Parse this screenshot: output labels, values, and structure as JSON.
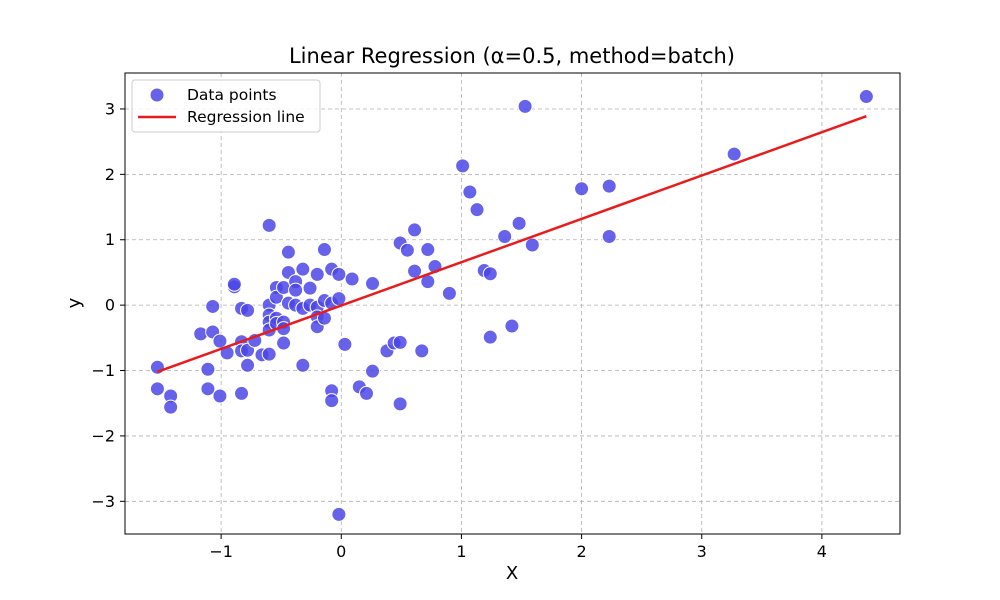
{
  "chart_data": {
    "type": "scatter",
    "title": "Linear Regression (α=0.5, method=batch)",
    "xlabel": "X",
    "ylabel": "y",
    "xlim": [
      -1.8,
      4.65
    ],
    "ylim": [
      -3.5,
      3.55
    ],
    "xticks": [
      {
        "value": -1,
        "label": "−1"
      },
      {
        "value": 0,
        "label": "0"
      },
      {
        "value": 1,
        "label": "1"
      },
      {
        "value": 2,
        "label": "2"
      },
      {
        "value": 3,
        "label": "3"
      },
      {
        "value": 4,
        "label": "4"
      }
    ],
    "yticks": [
      {
        "value": -3,
        "label": "−3"
      },
      {
        "value": -2,
        "label": "−2"
      },
      {
        "value": -1,
        "label": "−1"
      },
      {
        "value": 0,
        "label": "0"
      },
      {
        "value": 1,
        "label": "1"
      },
      {
        "value": 2,
        "label": "2"
      },
      {
        "value": 3,
        "label": "3"
      }
    ],
    "grid": true,
    "legend_position": "top-left",
    "series": [
      {
        "name": "Data points",
        "kind": "scatter",
        "color": "#4b46e6",
        "points": [
          [
            -1.53,
            -0.95
          ],
          [
            -1.53,
            -1.28
          ],
          [
            -1.42,
            -1.39
          ],
          [
            -1.42,
            -1.56
          ],
          [
            -1.17,
            -0.44
          ],
          [
            -1.11,
            -0.98
          ],
          [
            -1.11,
            -1.28
          ],
          [
            -1.07,
            -0.02
          ],
          [
            -1.07,
            -0.41
          ],
          [
            -1.01,
            -0.55
          ],
          [
            -1.01,
            -1.39
          ],
          [
            -0.95,
            -0.73
          ],
          [
            -0.89,
            0.28
          ],
          [
            -0.89,
            0.32
          ],
          [
            -0.83,
            -0.05
          ],
          [
            -0.83,
            -0.56
          ],
          [
            -0.83,
            -0.7
          ],
          [
            -0.83,
            -1.35
          ],
          [
            -0.78,
            -0.08
          ],
          [
            -0.78,
            -0.69
          ],
          [
            -0.78,
            -0.92
          ],
          [
            -0.72,
            -0.54
          ],
          [
            -0.66,
            -0.76
          ],
          [
            -0.6,
            1.22
          ],
          [
            -0.6,
            0.0
          ],
          [
            -0.6,
            -0.15
          ],
          [
            -0.6,
            -0.26
          ],
          [
            -0.6,
            -0.38
          ],
          [
            -0.6,
            -0.75
          ],
          [
            -0.54,
            0.27
          ],
          [
            -0.54,
            0.12
          ],
          [
            -0.54,
            -0.2
          ],
          [
            -0.54,
            -0.28
          ],
          [
            -0.48,
            0.27
          ],
          [
            -0.48,
            -0.26
          ],
          [
            -0.48,
            -0.36
          ],
          [
            -0.48,
            -0.58
          ],
          [
            -0.44,
            0.81
          ],
          [
            -0.44,
            0.5
          ],
          [
            -0.44,
            0.03
          ],
          [
            -0.38,
            0.36
          ],
          [
            -0.38,
            0.23
          ],
          [
            -0.38,
            0.0
          ],
          [
            -0.32,
            0.55
          ],
          [
            -0.32,
            -0.05
          ],
          [
            -0.32,
            -0.92
          ],
          [
            -0.26,
            0.26
          ],
          [
            -0.26,
            0.0
          ],
          [
            -0.2,
            0.47
          ],
          [
            -0.2,
            -0.03
          ],
          [
            -0.2,
            -0.18
          ],
          [
            -0.2,
            -0.33
          ],
          [
            -0.14,
            0.85
          ],
          [
            -0.14,
            0.07
          ],
          [
            -0.14,
            -0.2
          ],
          [
            -0.08,
            0.55
          ],
          [
            -0.08,
            0.03
          ],
          [
            -0.08,
            -1.31
          ],
          [
            -0.08,
            -1.46
          ],
          [
            -0.02,
            0.47
          ],
          [
            -0.02,
            0.1
          ],
          [
            -0.02,
            -3.2
          ],
          [
            0.03,
            -0.6
          ],
          [
            0.09,
            0.4
          ],
          [
            0.15,
            -1.25
          ],
          [
            0.21,
            -1.35
          ],
          [
            0.26,
            0.33
          ],
          [
            0.26,
            -1.01
          ],
          [
            0.38,
            -0.7
          ],
          [
            0.44,
            -0.58
          ],
          [
            0.49,
            0.95
          ],
          [
            0.49,
            -0.57
          ],
          [
            0.49,
            -1.51
          ],
          [
            0.55,
            0.84
          ],
          [
            0.61,
            1.15
          ],
          [
            0.61,
            0.52
          ],
          [
            0.67,
            -0.7
          ],
          [
            0.72,
            0.85
          ],
          [
            0.72,
            0.36
          ],
          [
            0.78,
            0.59
          ],
          [
            0.9,
            0.18
          ],
          [
            1.01,
            2.13
          ],
          [
            1.07,
            1.73
          ],
          [
            1.13,
            1.46
          ],
          [
            1.19,
            0.53
          ],
          [
            1.24,
            0.48
          ],
          [
            1.24,
            -0.49
          ],
          [
            1.36,
            1.05
          ],
          [
            1.42,
            -0.32
          ],
          [
            1.48,
            1.25
          ],
          [
            1.53,
            3.04
          ],
          [
            1.59,
            0.92
          ],
          [
            2.0,
            1.78
          ],
          [
            2.23,
            1.82
          ],
          [
            2.23,
            1.05
          ],
          [
            3.27,
            2.31
          ],
          [
            4.37,
            3.19
          ]
        ]
      },
      {
        "name": "Regression line",
        "kind": "line",
        "color": "#e81c1c",
        "points": [
          [
            -1.53,
            -1.02
          ],
          [
            4.37,
            2.89
          ]
        ]
      }
    ]
  }
}
